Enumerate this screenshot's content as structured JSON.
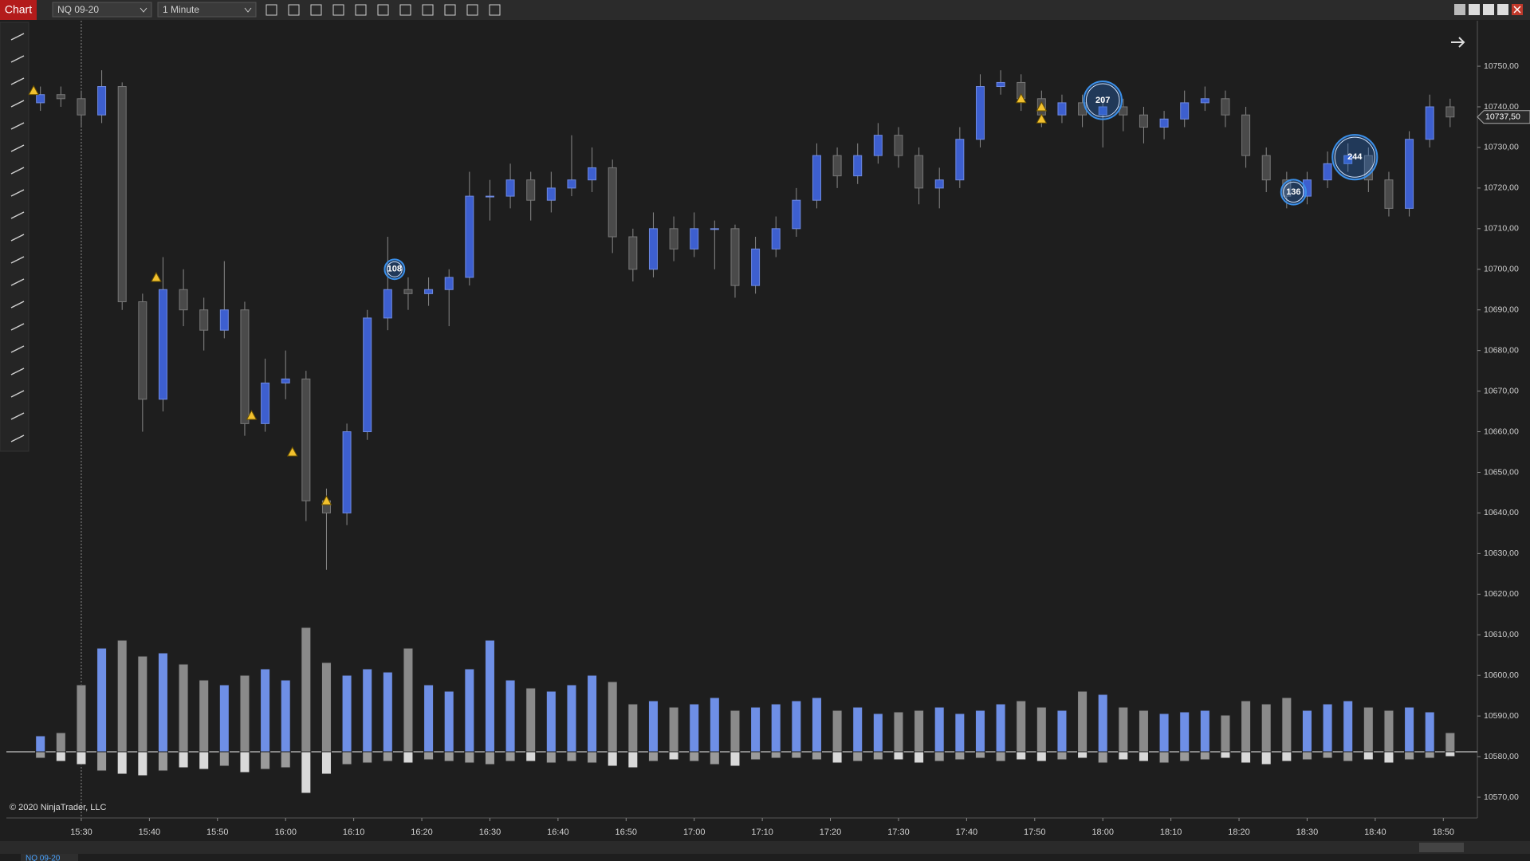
{
  "toolbar": {
    "title": "Chart",
    "instrument": "NQ 09-20",
    "interval": "1 Minute"
  },
  "copyright": "© 2020 NinjaTrader, LLC",
  "tab": "NQ 09-20",
  "chart_data": {
    "type": "candlestick",
    "x": [
      "15:24",
      "15:27",
      "15:30",
      "15:33",
      "15:36",
      "15:39",
      "15:42",
      "15:45",
      "15:48",
      "15:51",
      "15:54",
      "15:57",
      "16:00",
      "16:03",
      "16:06",
      "16:09",
      "16:12",
      "16:15",
      "16:18",
      "16:21",
      "16:24",
      "16:27",
      "16:30",
      "16:33",
      "16:36",
      "16:39",
      "16:42",
      "16:45",
      "16:48",
      "16:51",
      "16:54",
      "16:57",
      "17:00",
      "17:03",
      "17:06",
      "17:09",
      "17:12",
      "17:15",
      "17:18",
      "17:21",
      "17:24",
      "17:27",
      "17:30",
      "17:33",
      "17:36",
      "17:39",
      "17:42",
      "17:45",
      "17:48",
      "17:51",
      "17:54",
      "17:57",
      "18:00",
      "18:03",
      "18:06",
      "18:09",
      "18:12",
      "18:15",
      "18:18",
      "18:21",
      "18:24",
      "18:27",
      "18:30",
      "18:33",
      "18:36",
      "18:39",
      "18:42",
      "18:45",
      "18:48",
      "18:51"
    ],
    "open": [
      10741,
      10743,
      10742,
      10738,
      10745,
      10692,
      10668,
      10695,
      10690,
      10685,
      10690,
      10662,
      10672,
      10673,
      10643,
      10640,
      10660,
      10688,
      10695,
      10694,
      10695,
      10698,
      10718,
      10718,
      10722,
      10717,
      10720,
      10722,
      10725,
      10708,
      10700,
      10710,
      10705,
      10710,
      10710,
      10696,
      10705,
      10710,
      10717,
      10728,
      10723,
      10728,
      10733,
      10728,
      10720,
      10722,
      10732,
      10745,
      10746,
      10742,
      10738,
      10741,
      10738,
      10740,
      10738,
      10735,
      10737,
      10741,
      10742,
      10738,
      10728,
      10722,
      10718,
      10722,
      10726,
      10728,
      10722,
      10715,
      10732,
      10740
    ],
    "high": [
      10745,
      10745,
      10744,
      10749,
      10746,
      10694,
      10703,
      10700,
      10693,
      10702,
      10692,
      10678,
      10680,
      10675,
      10646,
      10662,
      10690,
      10708,
      10698,
      10698,
      10700,
      10724,
      10722,
      10726,
      10724,
      10724,
      10733,
      10730,
      10727,
      10710,
      10714,
      10713,
      10714,
      10712,
      10711,
      10708,
      10713,
      10720,
      10731,
      10730,
      10731,
      10736,
      10735,
      10730,
      10725,
      10735,
      10748,
      10749,
      10748,
      10744,
      10743,
      10743,
      10742,
      10742,
      10740,
      10739,
      10744,
      10745,
      10744,
      10740,
      10730,
      10724,
      10724,
      10729,
      10731,
      10730,
      10724,
      10734,
      10743,
      10742
    ],
    "low": [
      10739,
      10740,
      10735,
      10736,
      10690,
      10660,
      10665,
      10686,
      10680,
      10683,
      10659,
      10660,
      10668,
      10638,
      10626,
      10637,
      10658,
      10685,
      10690,
      10691,
      10686,
      10696,
      10712,
      10715,
      10712,
      10714,
      10718,
      10719,
      10704,
      10697,
      10698,
      10702,
      10703,
      10700,
      10693,
      10694,
      10703,
      10708,
      10715,
      10720,
      10721,
      10726,
      10725,
      10716,
      10715,
      10720,
      10730,
      10743,
      10739,
      10735,
      10736,
      10735,
      10730,
      10734,
      10731,
      10732,
      10735,
      10739,
      10735,
      10725,
      10719,
      10715,
      10716,
      10720,
      10724,
      10719,
      10713,
      10713,
      10730,
      10735
    ],
    "close": [
      10743,
      10742,
      10738,
      10745,
      10692,
      10668,
      10695,
      10690,
      10685,
      10690,
      10662,
      10672,
      10673,
      10643,
      10640,
      10660,
      10688,
      10695,
      10694,
      10695,
      10698,
      10718,
      10718,
      10722,
      10717,
      10720,
      10722,
      10725,
      10708,
      10700,
      10710,
      10705,
      10710,
      10710,
      10696,
      10705,
      10710,
      10717,
      10728,
      10723,
      10728,
      10733,
      10728,
      10720,
      10722,
      10732,
      10745,
      10746,
      10742,
      10738,
      10741,
      10738,
      10740,
      10738,
      10735,
      10737,
      10741,
      10742,
      10738,
      10728,
      10722,
      10718,
      10722,
      10726,
      10728,
      10722,
      10715,
      10732,
      10740,
      10737.5
    ],
    "up_color": "#3d5fcf",
    "down_color": "#4a4a4a",
    "volume": {
      "buy": [
        100,
        120,
        420,
        650,
        700,
        600,
        620,
        550,
        450,
        420,
        480,
        520,
        450,
        780,
        560,
        480,
        520,
        500,
        650,
        420,
        380,
        520,
        700,
        450,
        400,
        380,
        420,
        480,
        440,
        300,
        320,
        280,
        300,
        340,
        260,
        280,
        300,
        320,
        340,
        260,
        280,
        240,
        250,
        260,
        280,
        240,
        260,
        300,
        320,
        280,
        260,
        380,
        360,
        280,
        260,
        240,
        250,
        260,
        230,
        320,
        300,
        340,
        260,
        300,
        320,
        280,
        260,
        280,
        250,
        120
      ],
      "sell": [
        40,
        60,
        80,
        120,
        140,
        150,
        120,
        100,
        110,
        90,
        130,
        110,
        100,
        260,
        140,
        80,
        70,
        60,
        70,
        50,
        60,
        70,
        80,
        60,
        60,
        70,
        60,
        70,
        90,
        100,
        60,
        50,
        60,
        80,
        90,
        50,
        40,
        40,
        50,
        70,
        60,
        50,
        50,
        70,
        60,
        50,
        40,
        60,
        50,
        60,
        50,
        40,
        70,
        50,
        60,
        70,
        60,
        50,
        40,
        70,
        80,
        60,
        50,
        40,
        60,
        50,
        70,
        50,
        40,
        30
      ],
      "buy_color": "#6e8fe6",
      "sell_color": "#d9d9d9"
    },
    "markers": [
      {
        "x": "16:16",
        "y": 10700,
        "label": 108
      },
      {
        "x": "18:00",
        "y": 10741.6,
        "label": 207
      },
      {
        "x": "18:28",
        "y": 10719,
        "label": 136
      },
      {
        "x": "18:37",
        "y": 10727.6,
        "label": 244
      }
    ],
    "alerts": [
      {
        "x": "15:23",
        "y": 10744
      },
      {
        "x": "15:41",
        "y": 10698
      },
      {
        "x": "15:55",
        "y": 10664
      },
      {
        "x": "16:01",
        "y": 10655
      },
      {
        "x": "16:06",
        "y": 10643
      },
      {
        "x": "17:48",
        "y": 10742
      },
      {
        "x": "17:51",
        "y": 10740
      },
      {
        "x": "17:51",
        "y": 10737
      }
    ],
    "last_price": {
      "value": 10737.5,
      "label": "10737,50"
    },
    "xlim": [
      "15:19",
      "18:55"
    ],
    "ylim": [
      10564.9,
      10761.2
    ],
    "xticks": [
      "15:30",
      "15:40",
      "15:50",
      "16:00",
      "16:10",
      "16:20",
      "16:30",
      "16:40",
      "16:50",
      "17:00",
      "17:10",
      "17:20",
      "17:30",
      "17:40",
      "17:50",
      "18:00",
      "18:10",
      "18:20",
      "18:30",
      "18:40",
      "18:50"
    ],
    "yticks": [
      {
        "value": 10570,
        "label": "10570,00"
      },
      {
        "value": 10580,
        "label": "10580,00"
      },
      {
        "value": 10590,
        "label": "10590,00"
      },
      {
        "value": 10600,
        "label": "10600,00"
      },
      {
        "value": 10610,
        "label": "10610,00"
      },
      {
        "value": 10620,
        "label": "10620,00"
      },
      {
        "value": 10630,
        "label": "10630,00"
      },
      {
        "value": 10640,
        "label": "10640,00"
      },
      {
        "value": 10650,
        "label": "10650,00"
      },
      {
        "value": 10660,
        "label": "10660,00"
      },
      {
        "value": 10670,
        "label": "10670,00"
      },
      {
        "value": 10680,
        "label": "10680,00"
      },
      {
        "value": 10690,
        "label": "10690,00"
      },
      {
        "value": 10700,
        "label": "10700,00"
      },
      {
        "value": 10710,
        "label": "10710,00"
      },
      {
        "value": 10720,
        "label": "10720,00"
      },
      {
        "value": 10730,
        "label": "10730,00"
      },
      {
        "value": 10740,
        "label": "10740,00"
      },
      {
        "value": 10750,
        "label": "10750,00"
      }
    ],
    "grid": false
  }
}
